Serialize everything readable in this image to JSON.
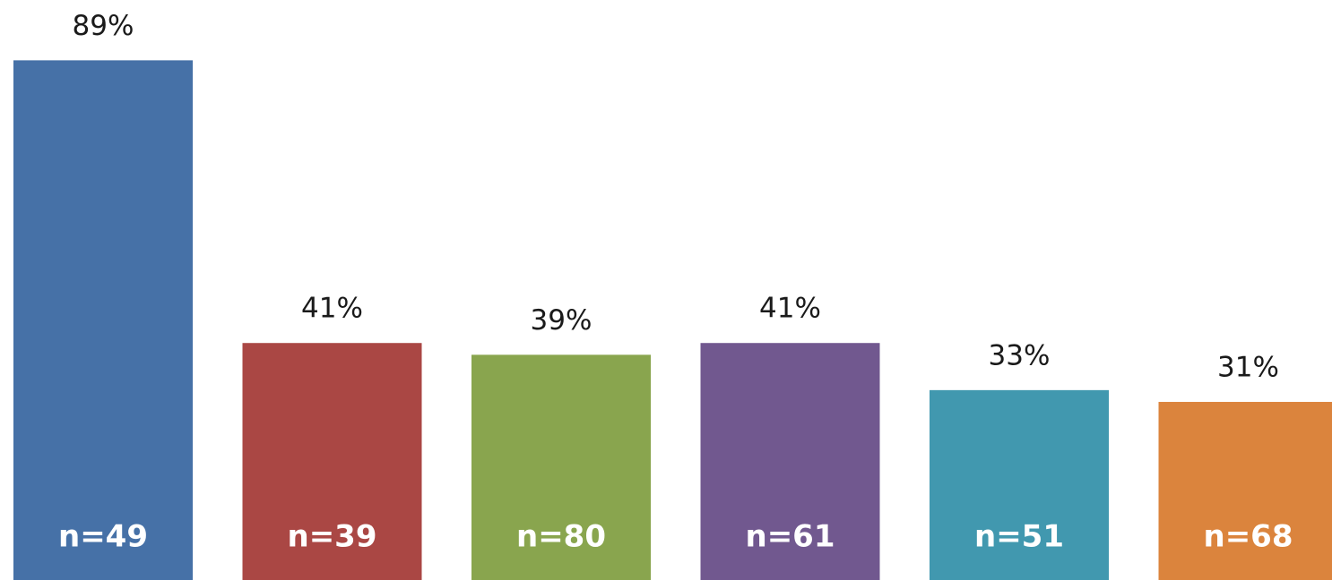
{
  "chart_data": {
    "type": "bar",
    "categories": [
      null,
      null,
      null,
      null,
      null,
      null
    ],
    "values": [
      89,
      41,
      39,
      41,
      33,
      31
    ],
    "value_labels": [
      "89%",
      "41%",
      "39%",
      "41%",
      "33%",
      "31%"
    ],
    "annotations": [
      "n=49",
      "n=39",
      "n=80",
      "n=61",
      "n=51",
      "n=68"
    ],
    "colors": [
      "#4671a7",
      "#aa4744",
      "#89a54e",
      "#71588f",
      "#4198af",
      "#db843d"
    ],
    "ylim": [
      0,
      100
    ]
  }
}
